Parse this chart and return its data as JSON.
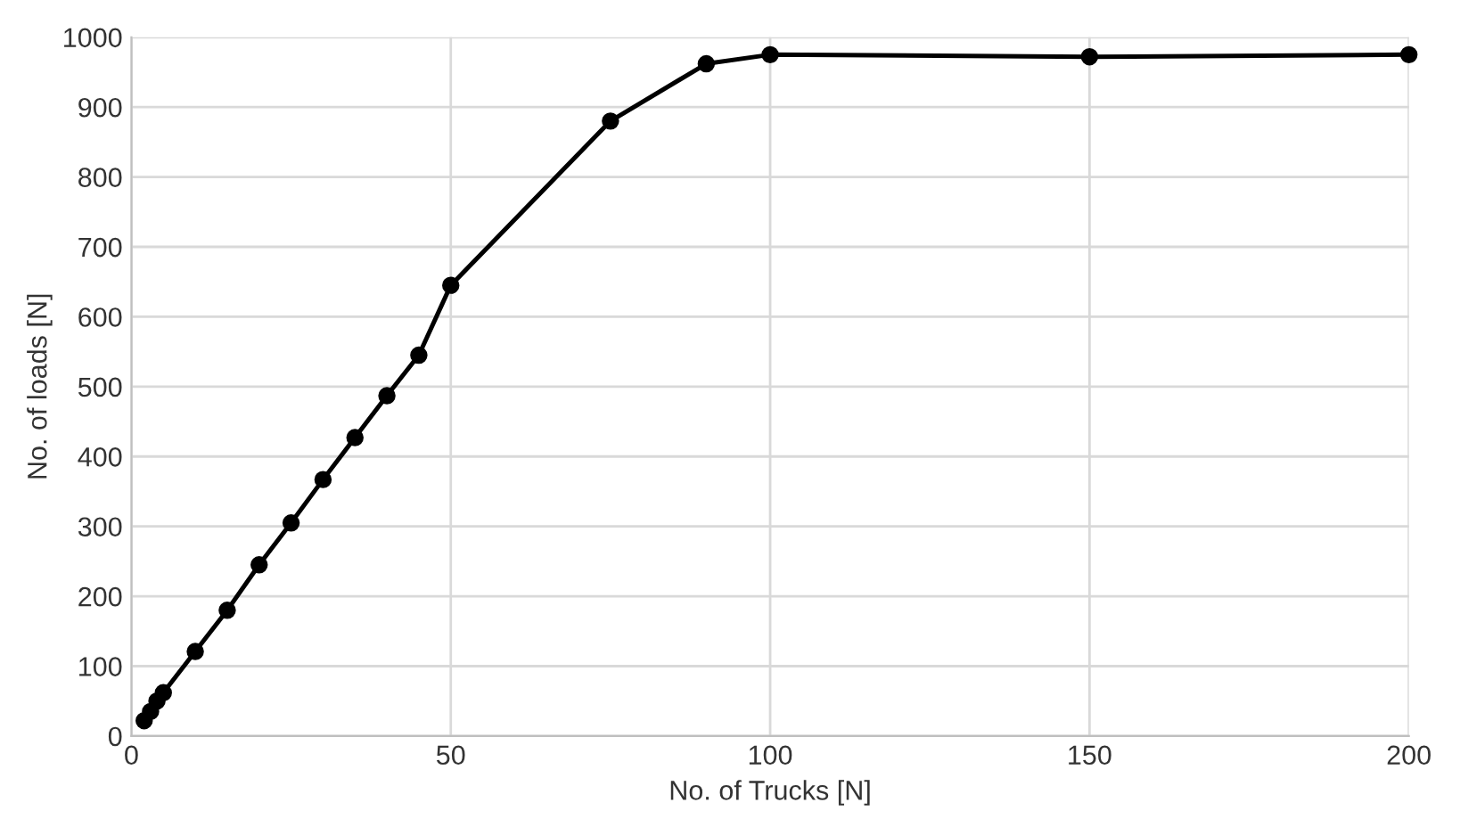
{
  "chart_data": {
    "type": "line",
    "xlabel": "No. of Trucks [N]",
    "ylabel": "No. of loads [N]",
    "x": [
      2,
      3,
      4,
      5,
      10,
      15,
      20,
      25,
      30,
      35,
      40,
      45,
      50,
      75,
      90,
      100,
      150,
      200
    ],
    "series": [
      {
        "color": "#000000",
        "values": [
          22,
          35,
          50,
          62,
          121,
          180,
          245,
          305,
          367,
          427,
          487,
          545,
          645,
          880,
          962,
          975,
          972,
          975
        ]
      }
    ],
    "xlim": [
      0,
      200
    ],
    "xticks": [
      0,
      50,
      100,
      150,
      200
    ],
    "ylim": [
      0,
      1000
    ],
    "yticks": [
      0,
      100,
      200,
      300,
      400,
      500,
      600,
      700,
      800,
      900,
      1000
    ],
    "grid": true,
    "marker": "circle",
    "line_style": "solid"
  }
}
